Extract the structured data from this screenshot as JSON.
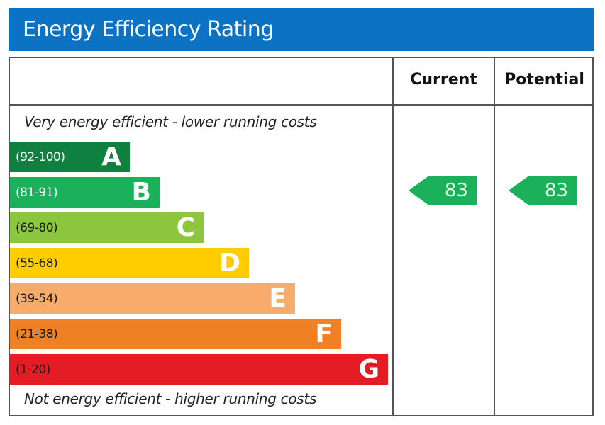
{
  "title": "Energy Efficiency Rating",
  "columns": {
    "current": "Current",
    "potential": "Potential"
  },
  "top_note": "Very energy efficient - lower running costs",
  "bottom_note": "Not energy efficient - higher running costs",
  "chart_data": {
    "type": "bar",
    "title": "Energy Efficiency Rating",
    "bands": [
      {
        "letter": "A",
        "range": "(92-100)",
        "color": "#0f8040",
        "text_color": "#ffffff"
      },
      {
        "letter": "B",
        "range": "(81-91)",
        "color": "#1bb05a",
        "text_color": "#ffffff"
      },
      {
        "letter": "C",
        "range": "(69-80)",
        "color": "#8cc63f",
        "text_color": "#1a1a1a"
      },
      {
        "letter": "D",
        "range": "(55-68)",
        "color": "#ffcc00",
        "text_color": "#1a1a1a"
      },
      {
        "letter": "E",
        "range": "(39-54)",
        "color": "#f7ac6b",
        "text_color": "#1a1a1a"
      },
      {
        "letter": "F",
        "range": "(21-38)",
        "color": "#ef8023",
        "text_color": "#1a1a1a"
      },
      {
        "letter": "G",
        "range": "(1-20)",
        "color": "#e31d23",
        "text_color": "#1a1a1a"
      }
    ],
    "current": {
      "value": "83",
      "band": "B",
      "color": "#1bb05a"
    },
    "potential": {
      "value": "83",
      "band": "B",
      "color": "#1bb05a"
    }
  }
}
